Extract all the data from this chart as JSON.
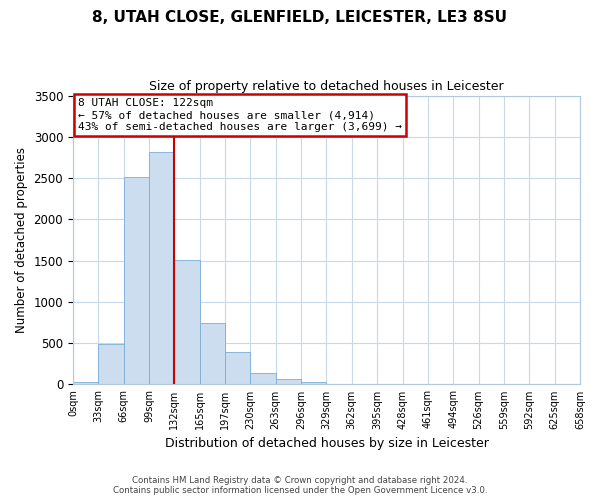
{
  "title": "8, UTAH CLOSE, GLENFIELD, LEICESTER, LE3 8SU",
  "subtitle": "Size of property relative to detached houses in Leicester",
  "xlabel": "Distribution of detached houses by size in Leicester",
  "ylabel": "Number of detached properties",
  "bin_labels": [
    "0sqm",
    "33sqm",
    "66sqm",
    "99sqm",
    "132sqm",
    "165sqm",
    "197sqm",
    "230sqm",
    "263sqm",
    "296sqm",
    "329sqm",
    "362sqm",
    "395sqm",
    "428sqm",
    "461sqm",
    "494sqm",
    "526sqm",
    "559sqm",
    "592sqm",
    "625sqm",
    "658sqm"
  ],
  "bar_values": [
    25,
    490,
    2510,
    2820,
    1510,
    750,
    390,
    140,
    65,
    30,
    5,
    0,
    0,
    0,
    0,
    0,
    0,
    0,
    0,
    0
  ],
  "bar_color": "#ccddf0",
  "bar_edge_color": "#7aaed4",
  "vline_x": 4,
  "vline_color": "#cc0000",
  "annotation_title": "8 UTAH CLOSE: 122sqm",
  "annotation_line1": "← 57% of detached houses are smaller (4,914)",
  "annotation_line2": "43% of semi-detached houses are larger (3,699) →",
  "annotation_box_color": "#ffffff",
  "annotation_box_edge_color": "#cc0000",
  "ylim": [
    0,
    3500
  ],
  "yticks": [
    0,
    500,
    1000,
    1500,
    2000,
    2500,
    3000,
    3500
  ],
  "footer_line1": "Contains HM Land Registry data © Crown copyright and database right 2024.",
  "footer_line2": "Contains public sector information licensed under the Open Government Licence v3.0.",
  "background_color": "#ffffff",
  "grid_color": "#c8d8ea"
}
